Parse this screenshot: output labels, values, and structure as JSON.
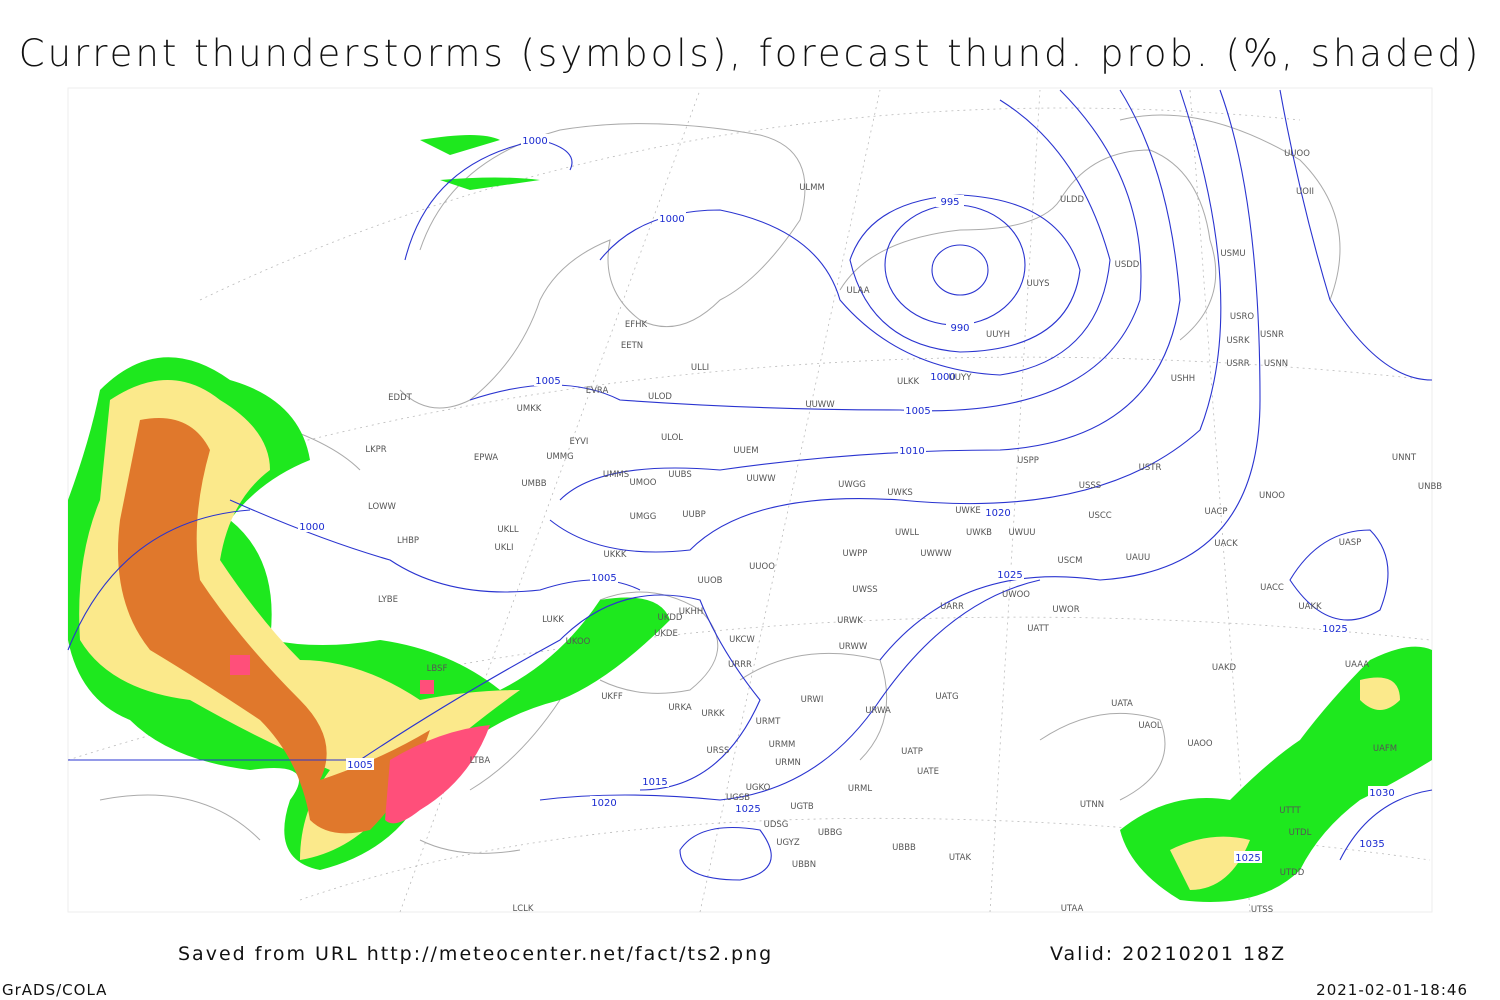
{
  "title": "Current thunderstorms (symbols), forecast thund. prob. (%, shaded)",
  "isobar_labels": [
    "1000",
    "1000",
    "995",
    "990",
    "1000",
    "1005",
    "1005",
    "1010",
    "1000",
    "1020",
    "1025",
    "1005",
    "1025",
    "1005",
    "1015",
    "1020",
    "1025",
    "1030",
    "1035",
    "1025"
  ],
  "stations": [
    "ULMM",
    "ULDD",
    "UUOO",
    "UOII",
    "USMU",
    "USDD",
    "ULAA",
    "UUYS",
    "USRO",
    "USRK",
    "USNR",
    "UUYH",
    "EFHK",
    "EETN",
    "USRR",
    "USNN",
    "ULLI",
    "ULKK",
    "UUYY",
    "USHH",
    "EVRA",
    "ULOD",
    "UUWW",
    "EDDT",
    "UMKK",
    "ULOL",
    "EYVI",
    "UUEM",
    "LKPR",
    "EPWA",
    "UMMG",
    "USPP",
    "USTR",
    "UNNT",
    "UNBB",
    "UMMS",
    "UMOO",
    "UUBS",
    "UUWW",
    "UWGG",
    "UWKS",
    "USSS",
    "UNOO",
    "UMBB",
    "LOWW",
    "UKLL",
    "UMGG",
    "UUBP",
    "UWKE",
    "USCC",
    "UACP",
    "UWLL",
    "UWKB",
    "UWUU",
    "UACK",
    "UASP",
    "UKLI",
    "LHBP",
    "UKKK",
    "UWPP",
    "UWWW",
    "USCM",
    "UAUU",
    "UUOO",
    "UUOB",
    "LYBE",
    "UACC",
    "UWSS",
    "UKHH",
    "UAKK",
    "UARR",
    "UWOO",
    "UWOR",
    "LUKK",
    "UKDD",
    "UATT",
    "UKDE",
    "URWK",
    "UKCW",
    "UKOO",
    "URRR",
    "URWW",
    "UAKD",
    "UAAA",
    "UKFF",
    "URWI",
    "UATG",
    "URKA",
    "URKK",
    "URMT",
    "URWA",
    "UATA",
    "UAOL",
    "UAOO",
    "UAFM",
    "URSS",
    "URMM",
    "UATP",
    "URMN",
    "UATE",
    "UGKO",
    "URML",
    "UGSB",
    "UTNN",
    "UGTB",
    "UTTT",
    "UDSG",
    "UTDL",
    "UBBG",
    "UGYZ",
    "UBBB",
    "UTAK",
    "UBBN",
    "UTDD",
    "LCLK",
    "UTAA",
    "UTSS",
    "LTBA",
    "LBSF"
  ],
  "footer": {
    "source": "Saved from URL http://meteocenter.net/fact/ts2.png",
    "valid": "Valid: 20210201 18Z",
    "software": "GrADS/COLA",
    "timestamp": "2021-02-01-18:46"
  }
}
